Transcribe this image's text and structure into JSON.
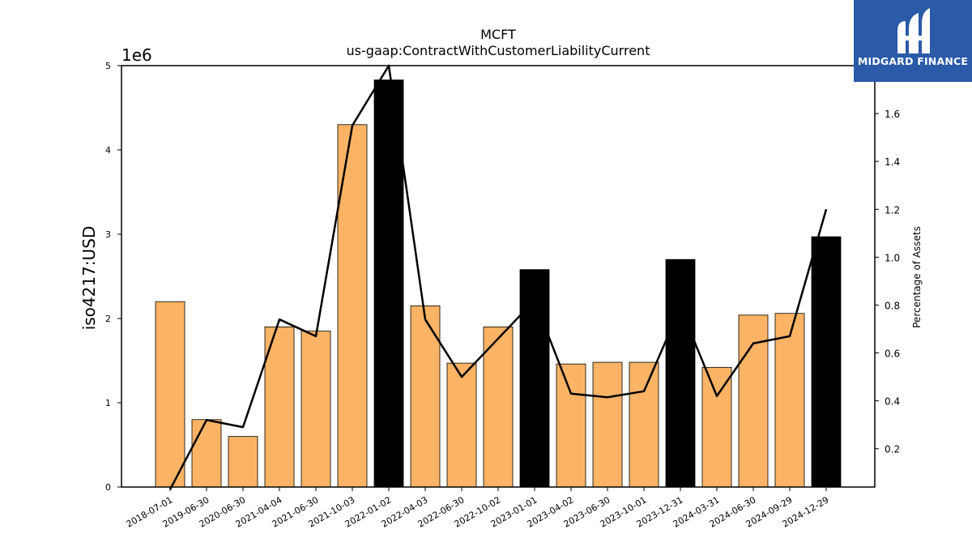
{
  "chart_data": {
    "type": "bar",
    "title": "MCFT",
    "subtitle": "us-gaap:ContractWithCustomerLiabilityCurrent",
    "ylabel": "iso4217:USD",
    "y_offset_label": "1e6",
    "y2label": "Percentage of Assets",
    "categories": [
      "2018-07-01",
      "2019-06-30",
      "2020-06-30",
      "2021-04-04",
      "2021-06-30",
      "2021-10-03",
      "2022-01-02",
      "2022-04-03",
      "2022-06-30",
      "2022-10-02",
      "2023-01-01",
      "2023-04-02",
      "2023-06-30",
      "2023-10-01",
      "2023-12-31",
      "2024-03-31",
      "2024-06-30",
      "2024-09-29",
      "2024-12-29"
    ],
    "series": [
      {
        "type": "bar",
        "axis": "left",
        "values": [
          2200000,
          800000,
          600000,
          1900000,
          1850000,
          4300000,
          4830000,
          2150000,
          1470000,
          1900000,
          2580000,
          1460000,
          1480000,
          1480000,
          2700000,
          1420000,
          2040000,
          2060000,
          2970000
        ],
        "highlight": [
          false,
          false,
          false,
          false,
          false,
          false,
          true,
          false,
          false,
          false,
          true,
          false,
          false,
          false,
          true,
          false,
          false,
          false,
          true
        ]
      },
      {
        "type": "line",
        "axis": "right",
        "values": [
          0.03,
          0.32,
          0.29,
          0.74,
          0.67,
          1.55,
          1.8,
          0.74,
          0.5,
          0.66,
          0.82,
          0.43,
          0.415,
          0.44,
          0.79,
          0.42,
          0.64,
          0.67,
          1.2
        ]
      }
    ],
    "ylim": [
      0,
      5000000
    ],
    "yticks": [
      0,
      1,
      2,
      3,
      4,
      5
    ],
    "y2lim": [
      0.04,
      1.8
    ],
    "y2ticks": [
      "0.2",
      "0.4",
      "0.6",
      "0.8",
      "1.0",
      "1.2",
      "1.4",
      "1.6"
    ],
    "colors": {
      "bar": "#fbb365",
      "highlight_bar": "#000000",
      "line": "#000000"
    }
  },
  "logo": {
    "text": "MIDGARD FINANCE",
    "color": "#2a5aa8"
  }
}
